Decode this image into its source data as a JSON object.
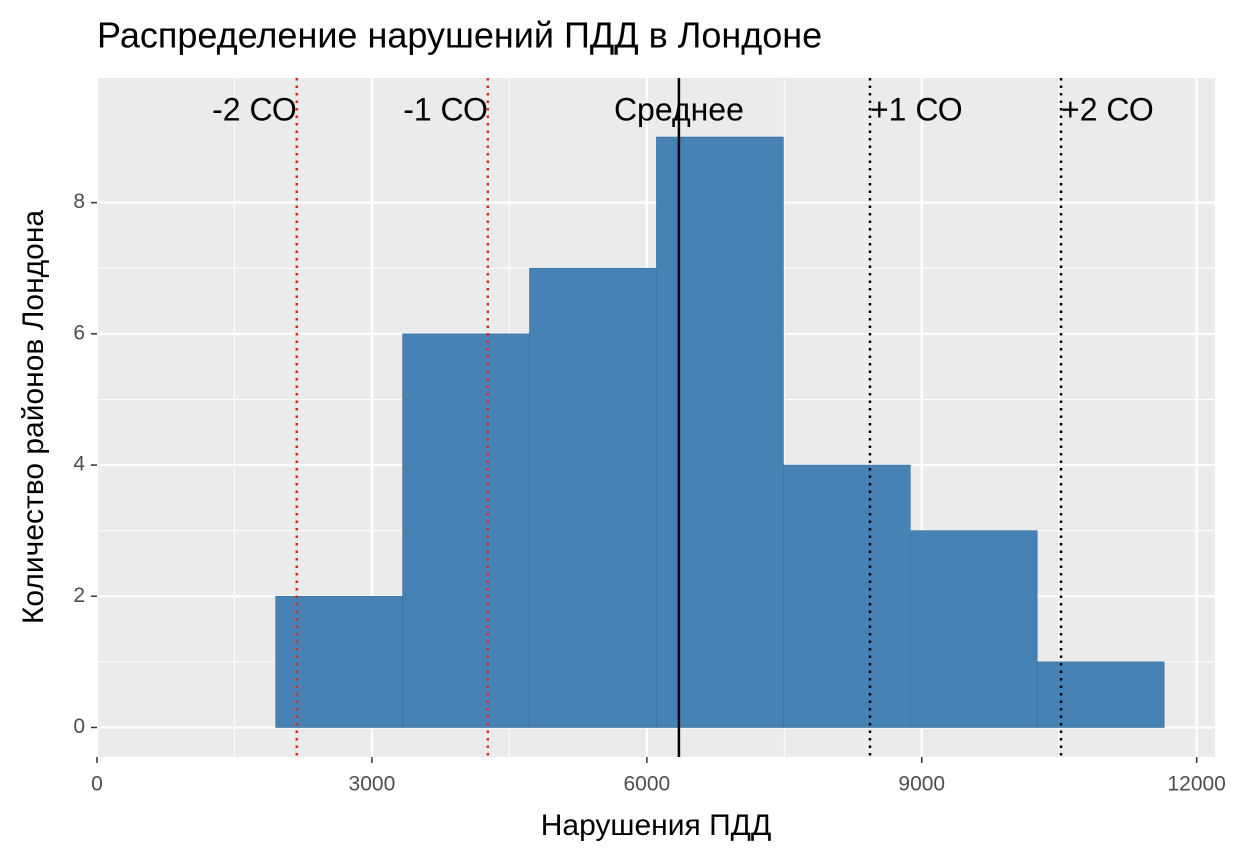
{
  "chart_data": {
    "type": "histogram",
    "title": "Распределение нарушений ПДД в Лондоне",
    "x_label": "Нарушения ПДД",
    "y_label": "Количество районов Лондона",
    "bins": [
      1950,
      3335,
      4720,
      6105,
      7490,
      8875,
      10260,
      11645
    ],
    "counts": [
      2,
      6,
      7,
      9,
      4,
      3,
      1
    ],
    "color": "#4682b4",
    "xlim": [
      0,
      12200
    ],
    "ylim": [
      -0.45,
      9.9
    ],
    "xticks": [
      0,
      3000,
      6000,
      9000,
      12000
    ],
    "yticks": [
      0,
      2,
      4,
      6,
      8
    ],
    "grid": true,
    "reference_lines": [
      {
        "value": 2180,
        "label": "-2 СО",
        "color": "#d62728",
        "style": "dotted"
      },
      {
        "value": 4265,
        "label": "-1 СО",
        "color": "#d62728",
        "style": "dotted"
      },
      {
        "value": 6350,
        "label": "Среднее",
        "color": "#000000",
        "style": "solid"
      },
      {
        "value": 8435,
        "label": "+1 СО",
        "color": "#000000",
        "style": "dotted"
      },
      {
        "value": 10520,
        "label": "+2 СО",
        "color": "#000000",
        "style": "dotted"
      }
    ]
  }
}
